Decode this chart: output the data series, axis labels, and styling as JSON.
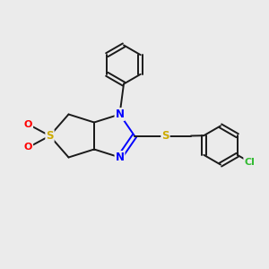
{
  "bg_color": "#ebebeb",
  "bond_color": "#1a1a1a",
  "N_color": "#0000ff",
  "S_color": "#ccaa00",
  "O_color": "#ff0000",
  "Cl_color": "#33bb33",
  "figsize": [
    3.0,
    3.0
  ],
  "dpi": 100,
  "xlim": [
    0,
    10
  ],
  "ylim": [
    0,
    10
  ]
}
